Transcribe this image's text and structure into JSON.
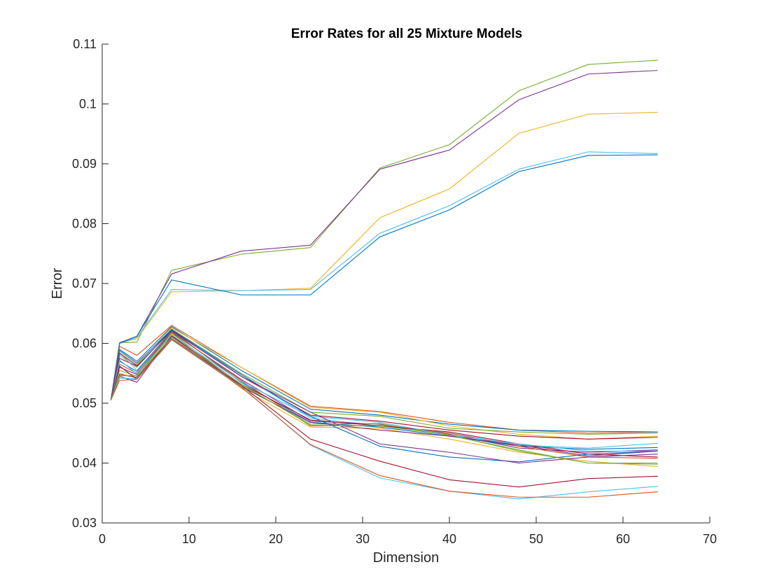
{
  "chart_data": {
    "type": "line",
    "title": "Error Rates for all 25 Mixture Models",
    "xlabel": "Dimension",
    "ylabel": "Error",
    "xlim": [
      0,
      70
    ],
    "ylim": [
      0.03,
      0.11
    ],
    "xticks": [
      0,
      10,
      20,
      30,
      40,
      50,
      60,
      70
    ],
    "yticks": [
      0.03,
      0.04,
      0.05,
      0.06,
      0.07,
      0.08,
      0.09,
      0.1,
      0.11
    ],
    "xtick_labels": [
      "0",
      "10",
      "20",
      "30",
      "40",
      "50",
      "60",
      "70"
    ],
    "ytick_labels": [
      "0.03",
      "0.04",
      "0.05",
      "0.06",
      "0.07",
      "0.08",
      "0.09",
      "0.1",
      "0.11"
    ],
    "grid": false,
    "legend": "none",
    "x": [
      1,
      2,
      4,
      8,
      16,
      24,
      32,
      40,
      48,
      56,
      64
    ],
    "series": [
      {
        "color": "#77ac30",
        "values": [
          0.0505,
          0.0601,
          0.0602,
          0.0722,
          0.0749,
          0.076,
          0.0893,
          0.0932,
          0.1022,
          0.1066,
          0.1073
        ]
      },
      {
        "color": "#7e2f8e",
        "values": [
          0.0505,
          0.0601,
          0.0612,
          0.0716,
          0.0754,
          0.0764,
          0.0891,
          0.0923,
          0.1007,
          0.105,
          0.1056
        ]
      },
      {
        "color": "#edb120",
        "values": [
          0.0505,
          0.06,
          0.0608,
          0.0686,
          0.0688,
          0.0692,
          0.081,
          0.0858,
          0.0951,
          0.0983,
          0.0986
        ]
      },
      {
        "color": "#4dbeee",
        "values": [
          0.0505,
          0.06,
          0.061,
          0.069,
          0.0688,
          0.069,
          0.0784,
          0.083,
          0.0891,
          0.092,
          0.0917
        ]
      },
      {
        "color": "#0072bd",
        "values": [
          0.0505,
          0.06,
          0.0612,
          0.0706,
          0.0681,
          0.0681,
          0.0778,
          0.0823,
          0.0887,
          0.0914,
          0.0915
        ]
      },
      {
        "color": "#d95319",
        "values": [
          0.0505,
          0.0595,
          0.058,
          0.063,
          0.056,
          0.0495,
          0.0486,
          0.0468,
          0.0455,
          0.045,
          0.0452
        ]
      },
      {
        "color": "#0072bd",
        "values": [
          0.0505,
          0.059,
          0.057,
          0.0628,
          0.0555,
          0.049,
          0.048,
          0.0465,
          0.0455,
          0.0453,
          0.0452
        ]
      },
      {
        "color": "#edb120",
        "values": [
          0.0505,
          0.0585,
          0.0565,
          0.0626,
          0.056,
          0.0493,
          0.0485,
          0.0462,
          0.0448,
          0.044,
          0.0445
        ]
      },
      {
        "color": "#77ac30",
        "values": [
          0.0505,
          0.058,
          0.056,
          0.0624,
          0.055,
          0.0485,
          0.0478,
          0.0458,
          0.0452,
          0.0448,
          0.045
        ]
      },
      {
        "color": "#a2142f",
        "values": [
          0.0505,
          0.0575,
          0.0562,
          0.0622,
          0.0545,
          0.048,
          0.047,
          0.0455,
          0.0445,
          0.044,
          0.0443
        ]
      },
      {
        "color": "#4dbeee",
        "values": [
          0.0505,
          0.0585,
          0.0555,
          0.062,
          0.0548,
          0.0475,
          0.0462,
          0.045,
          0.043,
          0.0425,
          0.0433
        ]
      },
      {
        "color": "#7e2f8e",
        "values": [
          0.0505,
          0.056,
          0.0548,
          0.0618,
          0.054,
          0.047,
          0.0465,
          0.0448,
          0.0425,
          0.0418,
          0.0422
        ]
      },
      {
        "color": "#0072bd",
        "values": [
          0.0505,
          0.057,
          0.0553,
          0.0621,
          0.0535,
          0.0468,
          0.046,
          0.0445,
          0.0428,
          0.0423,
          0.0426
        ]
      },
      {
        "color": "#d95319",
        "values": [
          0.0505,
          0.0565,
          0.055,
          0.0619,
          0.0538,
          0.0462,
          0.0463,
          0.045,
          0.0428,
          0.041,
          0.0408
        ]
      },
      {
        "color": "#77ac30",
        "values": [
          0.0505,
          0.0555,
          0.0545,
          0.0617,
          0.053,
          0.0465,
          0.0466,
          0.0446,
          0.0422,
          0.04,
          0.0398
        ]
      },
      {
        "color": "#edb120",
        "values": [
          0.0505,
          0.055,
          0.0542,
          0.0615,
          0.0525,
          0.046,
          0.0458,
          0.044,
          0.0418,
          0.0403,
          0.0394
        ]
      },
      {
        "color": "#7e2f8e",
        "values": [
          0.0505,
          0.0545,
          0.0535,
          0.0613,
          0.0528,
          0.0468,
          0.0455,
          0.0445,
          0.043,
          0.0412,
          0.042
        ]
      },
      {
        "color": "#a2142f",
        "values": [
          0.0505,
          0.0562,
          0.054,
          0.0612,
          0.0532,
          0.0472,
          0.0462,
          0.0452,
          0.0432,
          0.0415,
          0.041
        ]
      },
      {
        "color": "#4dbeee",
        "values": [
          0.0505,
          0.0572,
          0.0549,
          0.0614,
          0.0536,
          0.0478,
          0.0468,
          0.0447,
          0.0432,
          0.042,
          0.042
        ]
      },
      {
        "color": "#0072bd",
        "values": [
          0.0505,
          0.0588,
          0.0567,
          0.0623,
          0.0548,
          0.0478,
          0.0428,
          0.041,
          0.0402,
          0.0415,
          0.042
        ]
      },
      {
        "color": "#7e2f8e",
        "values": [
          0.0505,
          0.0583,
          0.0563,
          0.0621,
          0.0545,
          0.0485,
          0.0432,
          0.0418,
          0.04,
          0.041,
          0.0415
        ]
      },
      {
        "color": "#a2142f",
        "values": [
          0.0505,
          0.0548,
          0.0543,
          0.0608,
          0.053,
          0.044,
          0.0403,
          0.0372,
          0.036,
          0.0374,
          0.0378
        ]
      },
      {
        "color": "#4dbeee",
        "values": [
          0.0505,
          0.0542,
          0.0541,
          0.0607,
          0.0528,
          0.043,
          0.0375,
          0.0353,
          0.034,
          0.0352,
          0.0361
        ]
      },
      {
        "color": "#d95319",
        "values": [
          0.0505,
          0.0538,
          0.054,
          0.0606,
          0.0527,
          0.0431,
          0.0379,
          0.0353,
          0.0343,
          0.0343,
          0.0352
        ]
      },
      {
        "color": "#77ac30",
        "values": [
          0.0505,
          0.0546,
          0.0546,
          0.061,
          0.0532,
          0.0463,
          0.0462,
          0.0447,
          0.042,
          0.04,
          0.04
        ]
      }
    ]
  }
}
